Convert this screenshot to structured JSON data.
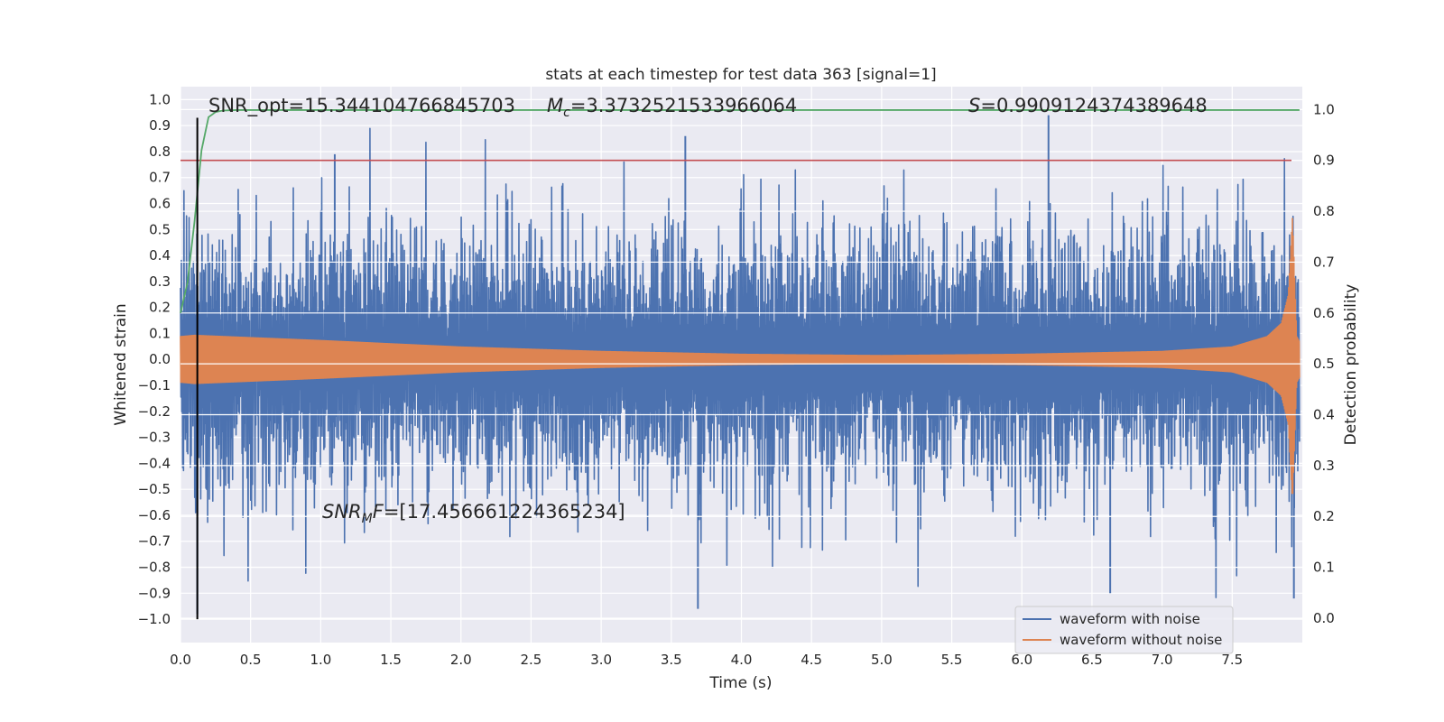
{
  "chart_data": {
    "type": "line",
    "title": "stats at each timestep for test data 363 [signal=1]",
    "xlabel": "Time (s)",
    "ylabel": "Whitened strain",
    "y2label": "Detection probability",
    "xlim": [
      0.0,
      8.0
    ],
    "ylim": [
      -1.09,
      1.05
    ],
    "y2lim": [
      -0.048,
      1.045
    ],
    "xticks": [
      "0.0",
      "0.5",
      "1.0",
      "1.5",
      "2.0",
      "2.5",
      "3.0",
      "3.5",
      "4.0",
      "4.5",
      "5.0",
      "5.5",
      "6.0",
      "6.5",
      "7.0",
      "7.5"
    ],
    "yticks": [
      "1.0",
      "0.9",
      "0.8",
      "0.7",
      "0.6",
      "0.5",
      "0.4",
      "0.3",
      "0.2",
      "0.1",
      "0.0",
      "−0.1",
      "−0.2",
      "−0.3",
      "−0.4",
      "−0.5",
      "−0.6",
      "−0.7",
      "−0.8",
      "−0.9",
      "−1.0"
    ],
    "y2ticks": [
      "1.0",
      "0.9",
      "0.8",
      "0.7",
      "0.6",
      "0.5",
      "0.4",
      "0.3",
      "0.2",
      "0.1",
      "0.0"
    ],
    "grid": true,
    "legend_position": "lower-right",
    "series": [
      {
        "name": "waveform with noise",
        "color": "#4c72b0",
        "axis": "left",
        "description_peaks": {
          "max": 0.94,
          "min": -0.96
        }
      },
      {
        "name": "waveform without noise",
        "color": "#dd8452",
        "axis": "left",
        "envelope": {
          "t": [
            0.0,
            0.1,
            1.0,
            2.0,
            3.0,
            4.0,
            5.0,
            6.0,
            7.0,
            7.5,
            7.75,
            7.85,
            7.9,
            7.93,
            7.96,
            8.0
          ],
          "amp": [
            0.09,
            0.095,
            0.075,
            0.05,
            0.033,
            0.022,
            0.017,
            0.022,
            0.033,
            0.05,
            0.09,
            0.14,
            0.25,
            0.55,
            0.09,
            0.05
          ]
        }
      },
      {
        "name": "detection probability",
        "color": "#55a868",
        "axis": "right",
        "x": [
          0.0,
          0.05,
          0.1,
          0.15,
          0.2,
          0.25,
          0.3,
          0.4,
          0.6,
          1.0,
          8.0
        ],
        "y": [
          0.6,
          0.66,
          0.78,
          0.92,
          0.985,
          0.995,
          0.998,
          0.999,
          0.999,
          0.999,
          0.999
        ]
      }
    ],
    "threshold": {
      "value": 0.9,
      "axis": "right",
      "color": "#c44e52"
    },
    "vertical_marker": {
      "x": 0.12,
      "y_from": -1.0,
      "y_to": 0.93,
      "color": "#000000"
    },
    "annotations": {
      "snr_opt": "SNR_opt=15.344104766845703",
      "mc_symbol": "M",
      "mc_sub": "c",
      "mc_value": "=3.3732521533966064",
      "s_symbol": "S",
      "s_value": "=0.9909124374389648",
      "snr_mf_symbol": "SNR",
      "snr_mf_sub": "M",
      "snr_mf_symbol2": "F",
      "snr_mf_value": "=[17.456661224365234]"
    }
  }
}
